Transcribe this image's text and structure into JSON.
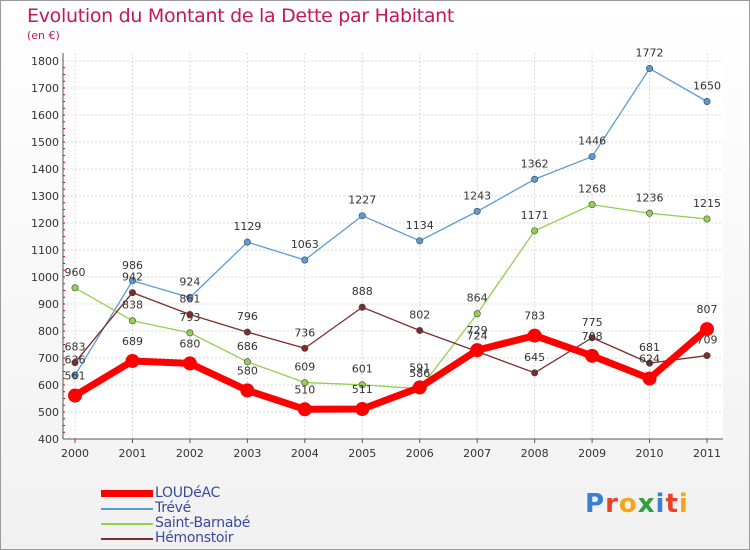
{
  "header": {
    "title": "Evolution du Montant de la Dette par Habitant",
    "subtitle": "(en €)"
  },
  "logo": {
    "text": "Proxiti",
    "letters": [
      "P",
      "r",
      "o",
      "x",
      "i",
      "t",
      "i"
    ],
    "colors": [
      "#3b7fd1",
      "#e8412c",
      "#f2a71b",
      "#2e9e3e",
      "#3b7fd1",
      "#e8412c",
      "#f2a71b"
    ]
  },
  "chart_data": {
    "type": "line",
    "title": "Evolution du Montant de la Dette par Habitant",
    "subtitle": "(en €)",
    "xlabel": "",
    "ylabel": "",
    "categories": [
      "2000",
      "2001",
      "2002",
      "2003",
      "2004",
      "2005",
      "2006",
      "2007",
      "2008",
      "2009",
      "2010",
      "2011"
    ],
    "ylim": [
      400,
      1800
    ],
    "yticks": [
      400,
      500,
      600,
      700,
      800,
      900,
      1000,
      1100,
      1200,
      1300,
      1400,
      1500,
      1600,
      1700,
      1800
    ],
    "grid": true,
    "legend_position": "bottom-left",
    "series": [
      {
        "name": "LOUDéAC",
        "color": "#ff0000",
        "emphasis": true,
        "values": [
          561,
          689,
          680,
          580,
          510,
          511,
          591,
          729,
          783,
          708,
          624,
          807
        ]
      },
      {
        "name": "Trévé",
        "color": "#5b9bd5",
        "emphasis": false,
        "values": [
          636,
          986,
          924,
          1129,
          1063,
          1227,
          1134,
          1243,
          1362,
          1446,
          1772,
          1650
        ]
      },
      {
        "name": "Saint-Barnabé",
        "color": "#92d050",
        "emphasis": false,
        "values": [
          960,
          838,
          793,
          686,
          609,
          601,
          586,
          864,
          1171,
          1268,
          1236,
          1215
        ]
      },
      {
        "name": "Hémonstoir",
        "color": "#7b2d2d",
        "emphasis": false,
        "values": [
          683,
          942,
          861,
          796,
          736,
          888,
          802,
          724,
          645,
          775,
          681,
          709
        ]
      }
    ]
  }
}
